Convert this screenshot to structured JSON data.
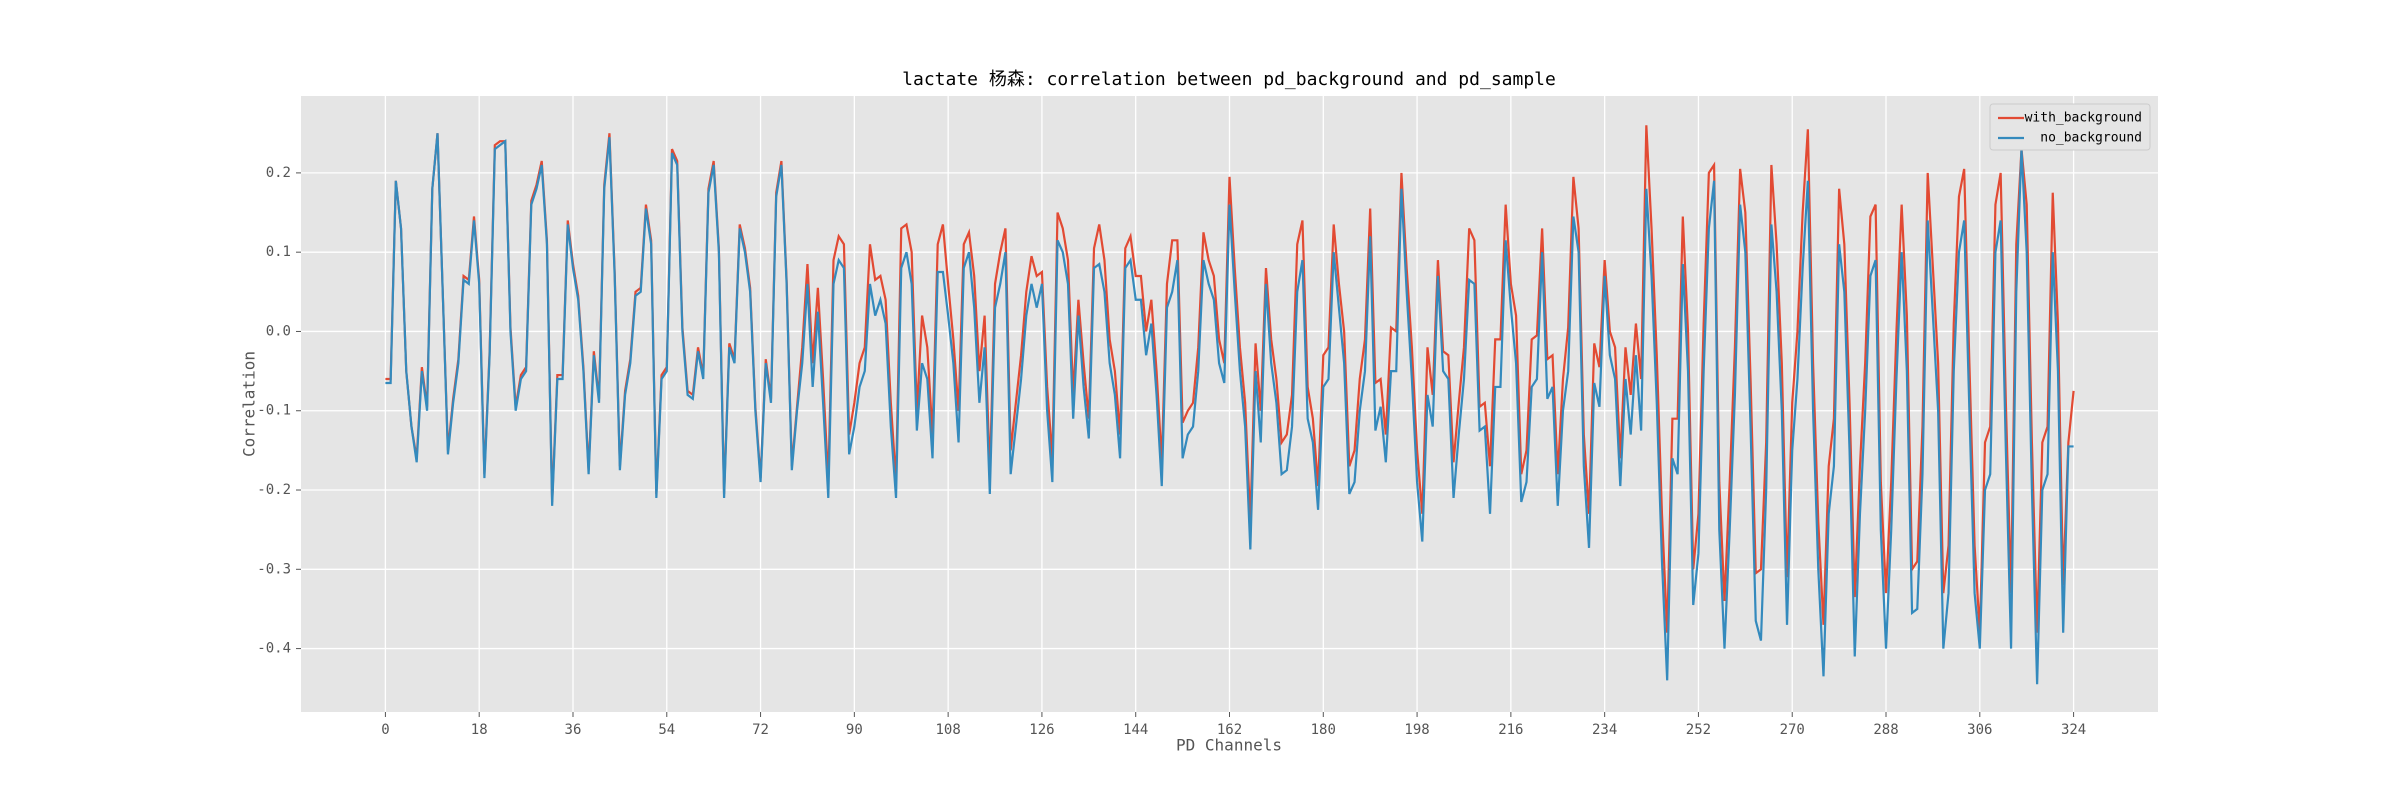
{
  "chart_data": {
    "type": "line",
    "title": "lactate 杨森: correlation between pd_background and pd_sample",
    "xlabel": "PD Channels",
    "ylabel": "Correlation",
    "x": [
      0,
      1,
      2,
      3,
      4,
      5,
      6,
      7,
      8,
      9,
      10,
      11,
      12,
      13,
      14,
      15,
      16,
      17,
      18,
      19,
      20,
      21,
      22,
      23,
      24,
      25,
      26,
      27,
      28,
      29,
      30,
      31,
      32,
      33,
      34,
      35,
      36,
      37,
      38,
      39,
      40,
      41,
      42,
      43,
      44,
      45,
      46,
      47,
      48,
      49,
      50,
      51,
      52,
      53,
      54,
      55,
      56,
      57,
      58,
      59,
      60,
      61,
      62,
      63,
      64,
      65,
      66,
      67,
      68,
      69,
      70,
      71,
      72,
      73,
      74,
      75,
      76,
      77,
      78,
      79,
      80,
      81,
      82,
      83,
      84,
      85,
      86,
      87,
      88,
      89,
      90,
      91,
      92,
      93,
      94,
      95,
      96,
      97,
      98,
      99,
      100,
      101,
      102,
      103,
      104,
      105,
      106,
      107,
      108,
      109,
      110,
      111,
      112,
      113,
      114,
      115,
      116,
      117,
      118,
      119,
      120,
      121,
      122,
      123,
      124,
      125,
      126,
      127,
      128,
      129,
      130,
      131,
      132,
      133,
      134,
      135,
      136,
      137,
      138,
      139,
      140,
      141,
      142,
      143,
      144,
      145,
      146,
      147,
      148,
      149,
      150,
      151,
      152,
      153,
      154,
      155,
      156,
      157,
      158,
      159,
      160,
      161,
      162,
      163,
      164,
      165,
      166,
      167,
      168,
      169,
      170,
      171,
      172,
      173,
      174,
      175,
      176,
      177,
      178,
      179,
      180,
      181,
      182,
      183,
      184,
      185,
      186,
      187,
      188,
      189,
      190,
      191,
      192,
      193,
      194,
      195,
      196,
      197,
      198,
      199,
      200,
      201,
      202,
      203,
      204,
      205,
      206,
      207,
      208,
      209,
      210,
      211,
      212,
      213,
      214,
      215,
      216,
      217,
      218,
      219,
      220,
      221,
      222,
      223,
      224,
      225,
      226,
      227,
      228,
      229,
      230,
      231,
      232,
      233,
      234,
      235,
      236,
      237,
      238,
      239,
      240,
      241,
      242,
      243,
      244,
      245,
      246,
      247,
      248,
      249,
      250,
      251,
      252,
      253,
      254,
      255,
      256,
      257,
      258,
      259,
      260,
      261,
      262,
      263,
      264,
      265,
      266,
      267,
      268,
      269,
      270,
      271,
      272,
      273,
      274,
      275,
      276,
      277,
      278,
      279,
      280,
      281,
      282,
      283,
      284,
      285,
      286,
      287,
      288,
      289,
      290,
      291,
      292,
      293,
      294,
      295,
      296,
      297,
      298,
      299,
      300,
      301,
      302,
      303,
      304,
      305,
      306,
      307,
      308,
      309,
      310,
      311,
      312,
      313,
      314,
      315,
      316,
      317,
      318,
      319,
      320,
      321,
      322,
      323,
      324
    ],
    "series": [
      {
        "name": "with_background",
        "color": "#E24A33",
        "values": [
          -0.06,
          -0.06,
          0.19,
          0.13,
          -0.05,
          -0.12,
          -0.16,
          -0.045,
          -0.095,
          0.18,
          0.25,
          0.05,
          -0.15,
          -0.085,
          -0.035,
          0.07,
          0.065,
          0.145,
          0.065,
          -0.18,
          -0.025,
          0.235,
          0.24,
          0.24,
          0.005,
          -0.095,
          -0.055,
          -0.045,
          0.165,
          0.185,
          0.215,
          0.115,
          -0.215,
          -0.055,
          -0.055,
          0.14,
          0.085,
          0.045,
          -0.045,
          -0.175,
          -0.025,
          -0.085,
          0.185,
          0.25,
          0.075,
          -0.17,
          -0.075,
          -0.035,
          0.05,
          0.055,
          0.16,
          0.115,
          -0.205,
          -0.055,
          -0.045,
          0.23,
          0.215,
          0.005,
          -0.075,
          -0.08,
          -0.02,
          -0.055,
          0.18,
          0.215,
          0.105,
          -0.205,
          -0.015,
          -0.035,
          0.135,
          0.105,
          0.055,
          -0.095,
          -0.185,
          -0.035,
          -0.085,
          0.175,
          0.215,
          0.065,
          -0.17,
          -0.095,
          -0.02,
          0.085,
          -0.04,
          0.055,
          -0.06,
          -0.19,
          0.09,
          0.12,
          0.11,
          -0.13,
          -0.09,
          -0.04,
          -0.02,
          0.11,
          0.065,
          0.07,
          0.04,
          -0.09,
          -0.19,
          0.13,
          0.135,
          0.1,
          -0.1,
          0.02,
          -0.02,
          -0.13,
          0.11,
          0.135,
          0.06,
          -0.01,
          -0.1,
          0.11,
          0.125,
          0.07,
          -0.05,
          0.02,
          -0.18,
          0.06,
          0.1,
          0.13,
          -0.15,
          -0.09,
          -0.03,
          0.05,
          0.095,
          0.07,
          0.075,
          -0.07,
          -0.16,
          0.15,
          0.13,
          0.09,
          -0.08,
          0.04,
          -0.04,
          -0.11,
          0.105,
          0.135,
          0.09,
          -0.01,
          -0.05,
          -0.13,
          0.105,
          0.12,
          0.07,
          0.07,
          0.0,
          0.04,
          -0.05,
          -0.165,
          0.06,
          0.115,
          0.115,
          -0.115,
          -0.1,
          -0.09,
          -0.02,
          0.125,
          0.09,
          0.07,
          -0.01,
          -0.04,
          0.195,
          0.08,
          -0.02,
          -0.09,
          -0.24,
          -0.015,
          -0.1,
          0.08,
          -0.01,
          -0.06,
          -0.14,
          -0.13,
          -0.08,
          0.11,
          0.14,
          -0.07,
          -0.11,
          -0.195,
          -0.03,
          -0.02,
          0.135,
          0.06,
          0.0,
          -0.17,
          -0.15,
          -0.06,
          -0.01,
          0.155,
          -0.065,
          -0.06,
          -0.13,
          0.005,
          0.0,
          0.2,
          0.08,
          -0.02,
          -0.15,
          -0.23,
          -0.02,
          -0.08,
          0.09,
          -0.025,
          -0.03,
          -0.165,
          -0.09,
          -0.02,
          0.13,
          0.115,
          -0.095,
          -0.09,
          -0.17,
          -0.01,
          -0.01,
          0.16,
          0.06,
          0.02,
          -0.18,
          -0.15,
          -0.01,
          -0.005,
          0.13,
          -0.035,
          -0.03,
          -0.18,
          -0.06,
          0.005,
          0.195,
          0.13,
          -0.13,
          -0.23,
          -0.015,
          -0.045,
          0.09,
          0.0,
          -0.02,
          -0.16,
          -0.02,
          -0.08,
          0.01,
          -0.06,
          0.26,
          0.13,
          -0.03,
          -0.23,
          -0.38,
          -0.11,
          -0.11,
          0.145,
          0.0,
          -0.3,
          -0.23,
          0.01,
          0.2,
          0.21,
          -0.19,
          -0.34,
          -0.19,
          -0.02,
          0.205,
          0.15,
          -0.06,
          -0.305,
          -0.3,
          -0.14,
          0.21,
          0.11,
          -0.04,
          -0.31,
          -0.09,
          0.0,
          0.15,
          0.255,
          -0.04,
          -0.24,
          -0.37,
          -0.17,
          -0.11,
          0.18,
          0.11,
          -0.09,
          -0.335,
          -0.17,
          -0.04,
          0.145,
          0.16,
          -0.19,
          -0.33,
          -0.19,
          0.0,
          0.16,
          0.02,
          -0.3,
          -0.29,
          -0.12,
          0.2,
          0.08,
          -0.04,
          -0.33,
          -0.27,
          0.01,
          0.17,
          0.205,
          -0.04,
          -0.27,
          -0.38,
          -0.14,
          -0.12,
          0.16,
          0.2,
          -0.09,
          -0.33,
          0.11,
          0.23,
          0.16,
          -0.14,
          -0.38,
          -0.14,
          -0.12,
          0.175,
          0.01,
          -0.32,
          -0.14,
          -0.075
        ]
      },
      {
        "name": "no_background",
        "color": "#348ABD",
        "values": [
          -0.065,
          -0.065,
          0.19,
          0.13,
          -0.05,
          -0.12,
          -0.165,
          -0.05,
          -0.1,
          0.18,
          0.25,
          0.05,
          -0.155,
          -0.09,
          -0.04,
          0.065,
          0.06,
          0.14,
          0.06,
          -0.185,
          -0.03,
          0.23,
          0.235,
          0.24,
          0.0,
          -0.1,
          -0.06,
          -0.05,
          0.16,
          0.18,
          0.21,
          0.11,
          -0.22,
          -0.06,
          -0.06,
          0.135,
          0.08,
          0.04,
          -0.05,
          -0.18,
          -0.03,
          -0.09,
          0.18,
          0.245,
          0.07,
          -0.175,
          -0.08,
          -0.04,
          0.045,
          0.05,
          0.155,
          0.11,
          -0.21,
          -0.06,
          -0.05,
          0.225,
          0.21,
          0.0,
          -0.08,
          -0.085,
          -0.025,
          -0.06,
          0.175,
          0.21,
          0.1,
          -0.21,
          -0.02,
          -0.04,
          0.13,
          0.1,
          0.05,
          -0.1,
          -0.19,
          -0.04,
          -0.09,
          0.17,
          0.21,
          0.06,
          -0.175,
          -0.1,
          -0.04,
          0.06,
          -0.07,
          0.025,
          -0.09,
          -0.21,
          0.06,
          0.09,
          0.08,
          -0.155,
          -0.12,
          -0.07,
          -0.05,
          0.06,
          0.02,
          0.04,
          0.01,
          -0.12,
          -0.21,
          0.08,
          0.1,
          0.06,
          -0.125,
          -0.04,
          -0.06,
          -0.16,
          0.075,
          0.075,
          0.02,
          -0.04,
          -0.14,
          0.08,
          0.1,
          0.03,
          -0.09,
          -0.02,
          -0.205,
          0.03,
          0.06,
          0.1,
          -0.18,
          -0.12,
          -0.06,
          0.02,
          0.06,
          0.03,
          0.06,
          -0.1,
          -0.19,
          0.115,
          0.1,
          0.06,
          -0.11,
          0.02,
          -0.07,
          -0.135,
          0.08,
          0.085,
          0.05,
          -0.04,
          -0.08,
          -0.16,
          0.08,
          0.09,
          0.04,
          0.04,
          -0.03,
          0.01,
          -0.08,
          -0.195,
          0.03,
          0.05,
          0.09,
          -0.16,
          -0.13,
          -0.12,
          -0.05,
          0.09,
          0.06,
          0.04,
          -0.04,
          -0.065,
          0.16,
          0.05,
          -0.05,
          -0.12,
          -0.275,
          -0.05,
          -0.14,
          0.06,
          -0.04,
          -0.09,
          -0.18,
          -0.175,
          -0.12,
          0.05,
          0.09,
          -0.11,
          -0.14,
          -0.225,
          -0.07,
          -0.06,
          0.1,
          0.03,
          -0.04,
          -0.205,
          -0.19,
          -0.1,
          -0.05,
          0.12,
          -0.125,
          -0.095,
          -0.165,
          -0.05,
          -0.05,
          0.18,
          0.05,
          -0.06,
          -0.19,
          -0.265,
          -0.08,
          -0.12,
          0.07,
          -0.05,
          -0.06,
          -0.21,
          -0.13,
          -0.06,
          0.065,
          0.06,
          -0.125,
          -0.12,
          -0.23,
          -0.07,
          -0.07,
          0.115,
          0.03,
          -0.04,
          -0.215,
          -0.19,
          -0.07,
          -0.06,
          0.1,
          -0.085,
          -0.07,
          -0.22,
          -0.1,
          -0.05,
          0.145,
          0.1,
          -0.17,
          -0.273,
          -0.065,
          -0.095,
          0.07,
          -0.03,
          -0.06,
          -0.195,
          -0.06,
          -0.13,
          -0.03,
          -0.125,
          0.18,
          0.07,
          -0.09,
          -0.29,
          -0.44,
          -0.16,
          -0.18,
          0.085,
          -0.05,
          -0.345,
          -0.28,
          -0.05,
          0.13,
          0.19,
          -0.25,
          -0.4,
          -0.25,
          -0.08,
          0.16,
          0.1,
          -0.12,
          -0.365,
          -0.39,
          -0.2,
          0.135,
          0.05,
          -0.1,
          -0.37,
          -0.15,
          -0.06,
          0.08,
          0.19,
          -0.1,
          -0.3,
          -0.435,
          -0.23,
          -0.17,
          0.11,
          0.05,
          -0.15,
          -0.41,
          -0.23,
          -0.1,
          0.07,
          0.09,
          -0.25,
          -0.4,
          -0.25,
          -0.06,
          0.1,
          -0.05,
          -0.355,
          -0.35,
          -0.18,
          0.14,
          0.02,
          -0.1,
          -0.4,
          -0.33,
          -0.05,
          0.1,
          0.14,
          -0.1,
          -0.33,
          -0.4,
          -0.2,
          -0.18,
          0.1,
          0.14,
          -0.15,
          -0.4,
          0.05,
          0.23,
          0.1,
          -0.2,
          -0.445,
          -0.2,
          -0.18,
          0.1,
          -0.05,
          -0.38,
          -0.145,
          -0.145
        ]
      }
    ],
    "xlim": [
      -16.2,
      340.2
    ],
    "ylim": [
      -0.48,
      0.297
    ],
    "xticks": [
      0,
      18,
      36,
      54,
      72,
      90,
      108,
      126,
      144,
      162,
      180,
      198,
      216,
      234,
      252,
      270,
      288,
      306,
      324
    ],
    "yticks": [
      -0.4,
      -0.3,
      -0.2,
      -0.1,
      {
        "value": 0,
        "label": "0.0"
      },
      0.1,
      0.2
    ],
    "grid": true,
    "legend": "upper right"
  }
}
